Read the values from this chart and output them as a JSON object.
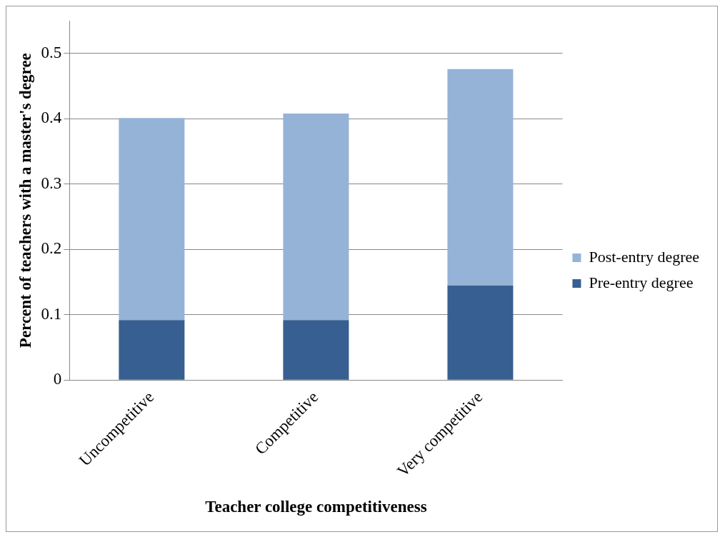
{
  "chart_data": {
    "type": "bar",
    "stacked": true,
    "xlabel": "Teacher college competitiveness",
    "ylabel": "Percent of teachers with a master's degree",
    "categories": [
      "Uncompetitive",
      "Competitive",
      "Very competitive"
    ],
    "series": [
      {
        "name": "Pre-entry degree",
        "color": "#375f91",
        "values": [
          0.092,
          0.092,
          0.145
        ]
      },
      {
        "name": "Post-entry degree",
        "color": "#95b3d7",
        "values": [
          0.309,
          0.316,
          0.331
        ]
      }
    ],
    "ylim": [
      0,
      0.55
    ],
    "yticks": [
      0,
      0.1,
      0.2,
      0.3,
      0.4,
      0.5
    ],
    "grid": "y",
    "legend": "right"
  }
}
